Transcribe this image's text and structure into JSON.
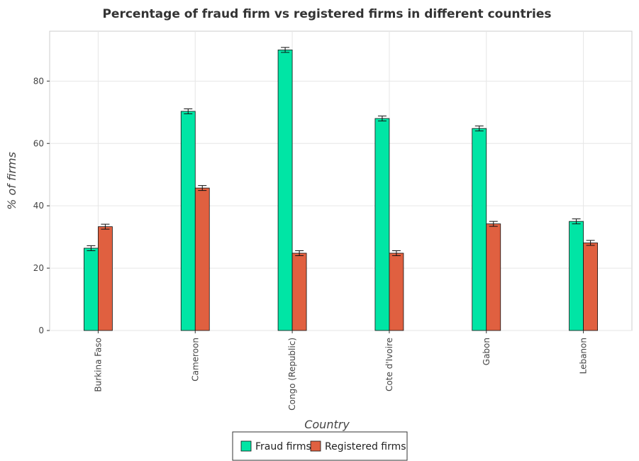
{
  "chart_data": {
    "type": "bar",
    "title": "Percentage of fraud firm vs registered firms in different countries",
    "xlabel": "Country",
    "ylabel": "% of firms",
    "categories": [
      "Burkina Faso",
      "Cameroon",
      "Congo (Republic)",
      "Cote d'Ivoire",
      "Gabon",
      "Lebanon"
    ],
    "series": [
      {
        "name": "Fraud firms",
        "color": "#00e5a5",
        "values": [
          26.4,
          70.3,
          90.0,
          68.0,
          64.8,
          35.0
        ]
      },
      {
        "name": "Registered firms",
        "color": "#e06040",
        "values": [
          33.3,
          45.7,
          24.8,
          24.8,
          34.2,
          28.1
        ]
      }
    ],
    "ylim": [
      0,
      96
    ],
    "yticks": [
      0,
      20,
      40,
      60,
      80
    ],
    "grid": true,
    "legend_position": "bottom-center"
  }
}
